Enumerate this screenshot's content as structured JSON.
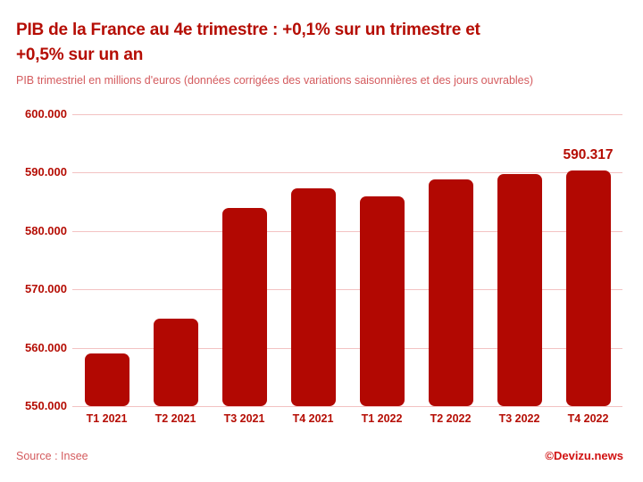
{
  "header": {
    "title_line1": "PIB de la France au 4e trimestre : +0,1% sur un trimestre et",
    "title_line2": "+0,5% sur un an",
    "subtitle": "PIB trimestriel en millions d'euros (données corrigées des variations saisonnières et des jours ouvrables)"
  },
  "chart_data": {
    "type": "bar",
    "title": "PIB de la France au 4e trimestre : +0,1% sur un trimestre et +0,5% sur un an",
    "subtitle": "PIB trimestriel en millions d'euros (données corrigées des variations saisonnières et des jours ouvrables)",
    "categories": [
      "T1 2021",
      "T2 2021",
      "T3 2021",
      "T4 2021",
      "T1 2022",
      "T2 2022",
      "T3 2022",
      "T4 2022"
    ],
    "values": [
      559000,
      565000,
      583900,
      587300,
      586000,
      588900,
      589800,
      590317
    ],
    "yticks": [
      "600.000",
      "590.000",
      "580.000",
      "570.000",
      "560.000",
      "550.000"
    ],
    "ylim": [
      550000,
      600000
    ],
    "grid": true,
    "legend": false,
    "annotation": {
      "text": "590.317",
      "category": "T4 2022",
      "index": 7
    }
  },
  "footer": {
    "source": "Source : Insee",
    "credit": "©Devizu.news"
  },
  "colors": {
    "background": "#ffffff",
    "accent": "#b50d04",
    "bar": "#b20802",
    "soft_red": "#d45b5e",
    "gridline": "#f3c2c2",
    "credit_red": "#d11111"
  }
}
